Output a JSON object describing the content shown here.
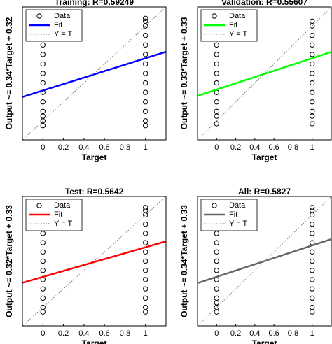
{
  "chart_data": [
    {
      "type": "regression",
      "title": "Training: R=0.59249",
      "xlabel": "Target",
      "ylabel": "Output ~= 0.34*Target + 0.32",
      "xlim": [
        -0.2,
        1.2
      ],
      "ylim": [
        -0.2,
        1.2
      ],
      "xticks": [
        0,
        0.2,
        0.4,
        0.6,
        0.8,
        1
      ],
      "legend": "upper left",
      "series": [
        {
          "name": "Data",
          "kind": "scatter",
          "color": "#000000",
          "x": [
            0,
            0,
            0,
            0,
            0,
            0,
            0,
            0,
            0,
            0,
            0,
            0,
            0,
            0,
            1,
            1,
            1,
            1,
            1,
            1,
            1,
            1,
            1,
            1,
            1,
            1,
            1,
            1
          ],
          "values": [
            -0.05,
            0,
            0.05,
            0.1,
            0.2,
            0.3,
            0.4,
            0.5,
            0.6,
            0.7,
            0.8,
            0.9,
            1.0,
            1.05,
            -0.05,
            0,
            0.1,
            0.2,
            0.3,
            0.4,
            0.5,
            0.6,
            0.7,
            0.8,
            0.9,
            1.0,
            1.05,
            1.08
          ]
        },
        {
          "name": "Fit",
          "kind": "line",
          "color": "#0000ff",
          "x": [
            -0.2,
            1.2
          ],
          "values": [
            0.252,
            0.728
          ]
        },
        {
          "name": "Y = T",
          "kind": "dotted",
          "color": "#777777",
          "x": [
            -0.2,
            1.2
          ],
          "values": [
            -0.2,
            1.2
          ]
        }
      ]
    },
    {
      "type": "regression",
      "title": "Validation: R=0.55607",
      "xlabel": "Target",
      "ylabel": "Output ~= 0.33*Target + 0.33",
      "xlim": [
        -0.2,
        1.2
      ],
      "ylim": [
        -0.2,
        1.2
      ],
      "xticks": [
        0,
        0.2,
        0.4,
        0.6,
        0.8,
        1
      ],
      "legend": "upper left",
      "series": [
        {
          "name": "Data",
          "kind": "scatter",
          "color": "#000000",
          "x": [
            0,
            0,
            0,
            0,
            0,
            0,
            0,
            0,
            0,
            0,
            0,
            0,
            0,
            1,
            1,
            1,
            1,
            1,
            1,
            1,
            1,
            1,
            1,
            1,
            1,
            1
          ],
          "values": [
            -0.03,
            0.05,
            0.1,
            0.2,
            0.3,
            0.4,
            0.5,
            0.6,
            0.7,
            0.8,
            0.9,
            1.0,
            1.05,
            -0.03,
            0.05,
            0.1,
            0.2,
            0.3,
            0.4,
            0.5,
            0.6,
            0.7,
            0.8,
            0.9,
            1.0,
            1.05
          ]
        },
        {
          "name": "Fit",
          "kind": "line",
          "color": "#00ff00",
          "x": [
            -0.2,
            1.2
          ],
          "values": [
            0.264,
            0.726
          ]
        },
        {
          "name": "Y = T",
          "kind": "dotted",
          "color": "#777777",
          "x": [
            -0.2,
            1.2
          ],
          "values": [
            -0.2,
            1.2
          ]
        }
      ]
    },
    {
      "type": "regression",
      "title": "Test: R=0.5642",
      "xlabel": "Target",
      "ylabel": "Output ~= 0.32*Target + 0.33",
      "xlim": [
        -0.2,
        1.2
      ],
      "ylim": [
        -0.2,
        1.2
      ],
      "xticks": [
        0,
        0.2,
        0.4,
        0.6,
        0.8,
        1
      ],
      "legend": "upper left",
      "series": [
        {
          "name": "Data",
          "kind": "scatter",
          "color": "#000000",
          "x": [
            0,
            0,
            0,
            0,
            0,
            0,
            0,
            0,
            0,
            0,
            0,
            0,
            0,
            1,
            1,
            1,
            1,
            1,
            1,
            1,
            1,
            1,
            1,
            1,
            1,
            1,
            1
          ],
          "values": [
            -0.05,
            0,
            0.1,
            0.2,
            0.3,
            0.4,
            0.5,
            0.6,
            0.7,
            0.8,
            0.9,
            1.0,
            1.05,
            -0.05,
            0,
            0.1,
            0.2,
            0.3,
            0.4,
            0.5,
            0.6,
            0.7,
            0.8,
            0.9,
            1.0,
            1.05,
            1.08
          ]
        },
        {
          "name": "Fit",
          "kind": "line",
          "color": "#ff0000",
          "x": [
            -0.2,
            1.2
          ],
          "values": [
            0.266,
            0.714
          ]
        },
        {
          "name": "Y = T",
          "kind": "dotted",
          "color": "#777777",
          "x": [
            -0.2,
            1.2
          ],
          "values": [
            -0.2,
            1.2
          ]
        }
      ]
    },
    {
      "type": "regression",
      "title": "All: R=0.5827",
      "xlabel": "Target",
      "ylabel": "Output ~= 0.34*Target + 0.33",
      "xlim": [
        -0.2,
        1.2
      ],
      "ylim": [
        -0.2,
        1.2
      ],
      "xticks": [
        0,
        0.2,
        0.4,
        0.6,
        0.8,
        1
      ],
      "legend": "upper left",
      "series": [
        {
          "name": "Data",
          "kind": "scatter",
          "color": "#000000",
          "x": [
            0,
            0,
            0,
            0,
            0,
            0,
            0,
            0,
            0,
            0,
            0,
            0,
            0,
            0,
            1,
            1,
            1,
            1,
            1,
            1,
            1,
            1,
            1,
            1,
            1,
            1,
            1,
            1
          ],
          "values": [
            -0.05,
            0,
            0.05,
            0.1,
            0.2,
            0.3,
            0.4,
            0.5,
            0.6,
            0.7,
            0.8,
            0.9,
            1.0,
            1.05,
            -0.05,
            0,
            0.1,
            0.2,
            0.3,
            0.4,
            0.5,
            0.6,
            0.7,
            0.8,
            0.9,
            1.0,
            1.05,
            1.08
          ]
        },
        {
          "name": "Fit",
          "kind": "line",
          "color": "#666666",
          "x": [
            -0.2,
            1.2
          ],
          "values": [
            0.262,
            0.738
          ]
        },
        {
          "name": "Y = T",
          "kind": "dotted",
          "color": "#777777",
          "x": [
            -0.2,
            1.2
          ],
          "values": [
            -0.2,
            1.2
          ]
        }
      ]
    }
  ]
}
